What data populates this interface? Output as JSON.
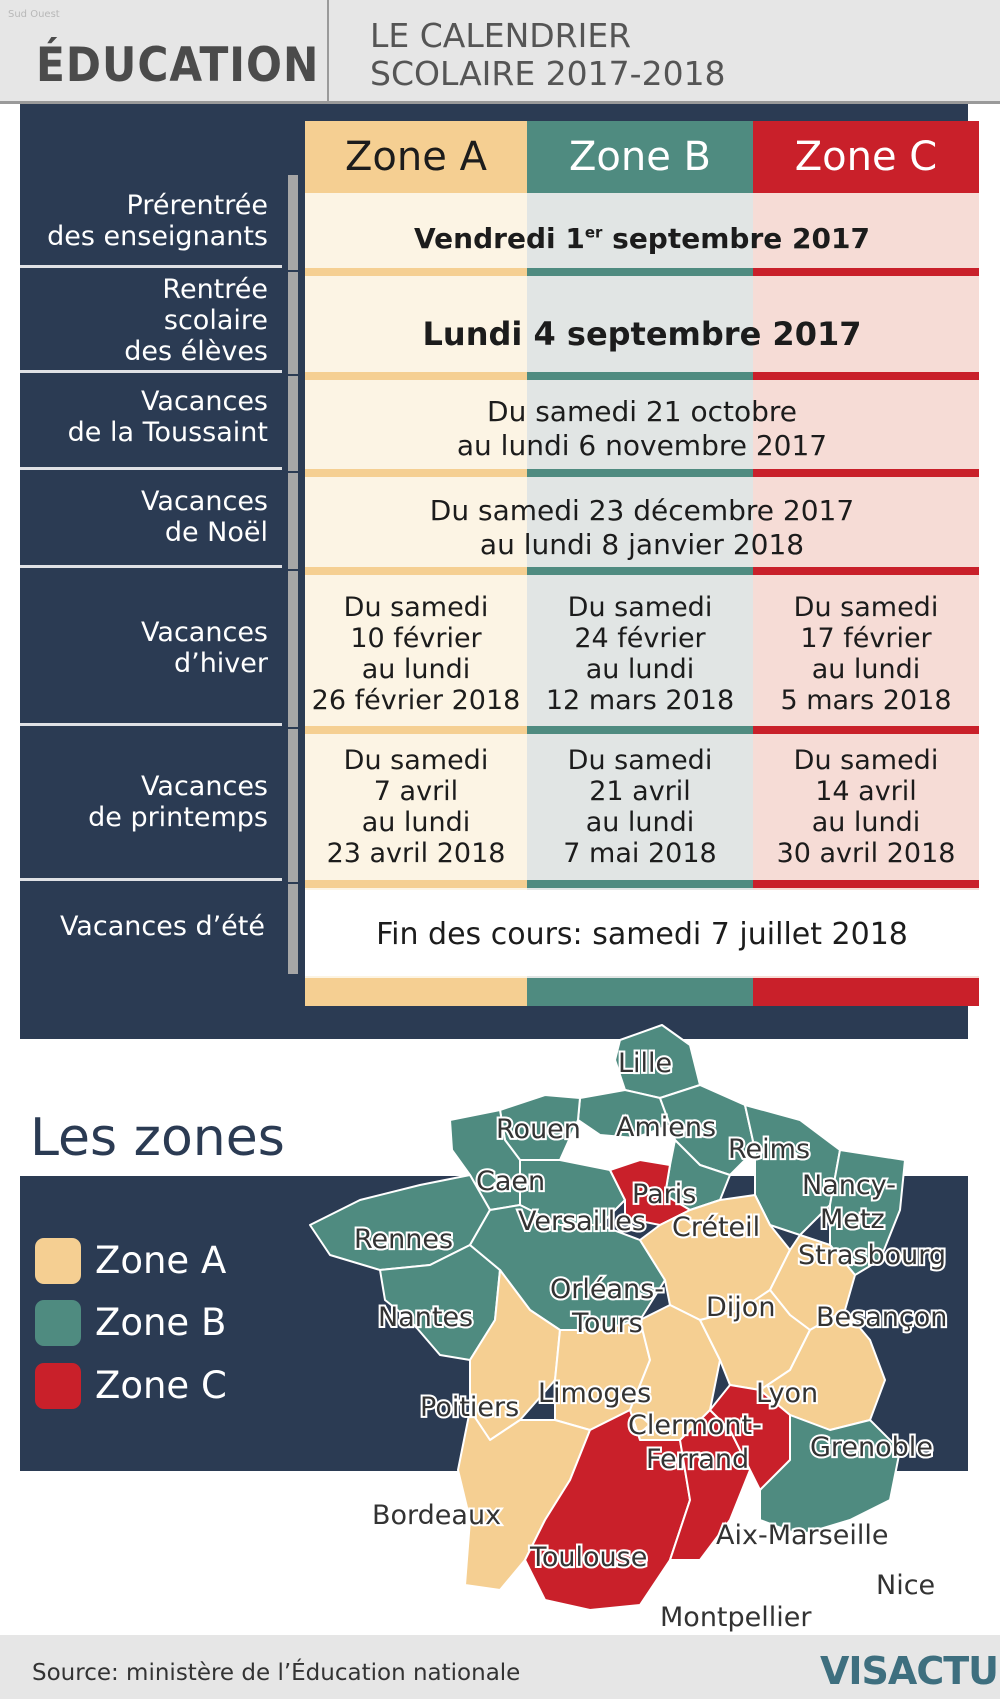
{
  "header": {
    "watermark": "Sud Ouest",
    "section": "ÉDUCATION",
    "title_line1": "LE CALENDRIER",
    "title_line2": "SCOLAIRE 2017-2018"
  },
  "zones": [
    "Zone A",
    "Zone B",
    "Zone C"
  ],
  "colors": {
    "zone_a": "#f5cf92",
    "zone_b": "#4f8b80",
    "zone_c": "#c9202a",
    "panel": "#2b3b53"
  },
  "rows": {
    "prerentree": {
      "label1": "Prérentrée",
      "label2": "des enseignants",
      "value_pre": "Vendredi 1",
      "value_sup": "er",
      "value_post": " septembre 2017"
    },
    "rentree": {
      "label1": "Rentrée",
      "label2": "scolaire",
      "label3": "des élèves",
      "value": "Lundi 4 septembre 2017"
    },
    "toussaint": {
      "label1": "Vacances",
      "label2": "de la Toussaint",
      "line1": "Du samedi 21 octobre",
      "line2": "au lundi 6 novembre 2017"
    },
    "noel": {
      "label1": "Vacances",
      "label2": "de Noël",
      "line1": "Du samedi 23 décembre 2017",
      "line2": "au lundi 8 janvier 2018"
    },
    "hiver": {
      "label1": "Vacances",
      "label2": "d’hiver",
      "a": [
        "Du samedi",
        "10 février",
        "au lundi",
        "26 février 2018"
      ],
      "b": [
        "Du samedi",
        "24 février",
        "au lundi",
        "12 mars 2018"
      ],
      "c": [
        "Du samedi",
        "17 février",
        "au lundi",
        "5 mars 2018"
      ]
    },
    "printemps": {
      "label1": "Vacances",
      "label2": "de printemps",
      "a": [
        "Du samedi",
        "7 avril",
        "au lundi",
        "23 avril 2018"
      ],
      "b": [
        "Du samedi",
        "21 avril",
        "au lundi",
        "7 mai 2018"
      ],
      "c": [
        "Du samedi",
        "14 avril",
        "au lundi",
        "30 avril 2018"
      ]
    },
    "ete": {
      "label": "Vacances d’été",
      "value": "Fin des cours: samedi 7 juillet 2018"
    }
  },
  "legend": {
    "title": "Les zones",
    "items": [
      "Zone A",
      "Zone B",
      "Zone C"
    ]
  },
  "map_labels": {
    "lille": "Lille",
    "rouen": "Rouen",
    "amiens": "Amiens",
    "reims": "Reims",
    "caen": "Caen",
    "paris": "Paris",
    "nancy_metz": "Nancy-",
    "metz": "Metz",
    "versailles": "Versailles",
    "creteil": "Créteil",
    "rennes": "Rennes",
    "strasbourg": "Strasbourg",
    "orleans_tours": "Orléans-",
    "tours": "Tours",
    "dijon": "Dijon",
    "besancon": "Besançon",
    "nantes": "Nantes",
    "poitiers": "Poitiers",
    "limoges": "Limoges",
    "lyon": "Lyon",
    "clermont": "Clermont-",
    "ferrand": "Ferrand",
    "grenoble": "Grenoble",
    "bordeaux": "Bordeaux",
    "aix": "Aix-Marseille",
    "toulouse": "Toulouse",
    "nice": "Nice",
    "montpellier": "Montpellier"
  },
  "footer": {
    "source": "Source: ministère de l’Éducation nationale",
    "logo": "VISACTU"
  }
}
